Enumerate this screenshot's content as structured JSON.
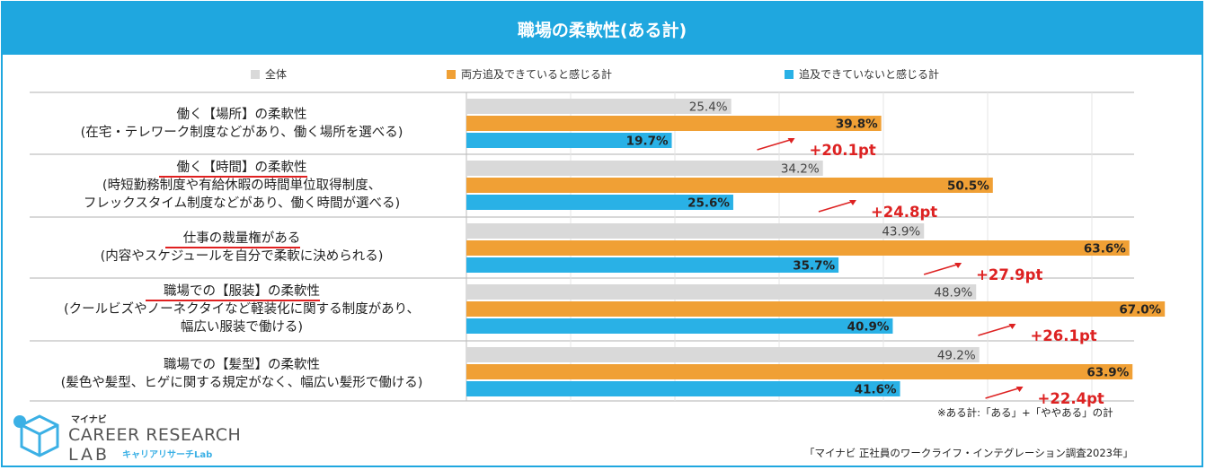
{
  "header": {
    "title": "職場の柔軟性(ある計)"
  },
  "legend": [
    {
      "label": "全体",
      "color": "#d9d9d9"
    },
    {
      "label": "両方追及できていると感じる計",
      "color": "#f0a035"
    },
    {
      "label": "追及できていないと感じる計",
      "color": "#29b1e6"
    }
  ],
  "rows": [
    {
      "line1": "働く【場所】の柔軟性",
      "line2": "(在宅・テレワーク制度などがあり、働く場所を選べる)",
      "line3": ""
    },
    {
      "line1": "働く【時間】の柔軟性",
      "line2": "(時短勤務制度や有給休暇の時間単位取得制度、",
      "line3": "フレックスタイム制度などがあり、働く時間が選べる)"
    },
    {
      "line1": "仕事の裁量権がある",
      "line2": "(内容やスケジュールを自分で柔軟に決められる)",
      "line3": ""
    },
    {
      "line1": "職場での【服装】の柔軟性",
      "line2": "(クールビズやノーネクタイなど軽装化に関する制度があり、",
      "line3": "幅広い服装で働ける)"
    },
    {
      "line1": "職場での【髪型】の柔軟性",
      "line2": "(髪色や髪型、ヒゲに関する規定がなく、幅広い髪形で働ける)",
      "line3": ""
    }
  ],
  "chart_data": {
    "type": "bar",
    "orientation": "horizontal",
    "title": "職場の柔軟性(ある計)",
    "categories": [
      "働く【場所】の柔軟性",
      "働く【時間】の柔軟性",
      "仕事の裁量権がある",
      "職場での【服装】の柔軟性",
      "職場での【髪型】の柔軟性"
    ],
    "series": [
      {
        "name": "全体",
        "values": [
          25.4,
          34.2,
          43.9,
          48.9,
          49.2
        ],
        "color": "#d9d9d9"
      },
      {
        "name": "両方追及できていると感じる計",
        "values": [
          39.8,
          50.5,
          63.6,
          67.0,
          63.9
        ],
        "color": "#f0a035"
      },
      {
        "name": "追及できていないと感じる計",
        "values": [
          19.7,
          25.6,
          35.7,
          40.9,
          41.6
        ],
        "color": "#29b1e6"
      }
    ],
    "value_labels": [
      [
        "25.4%",
        "39.8%",
        "19.7%"
      ],
      [
        "34.2%",
        "50.5%",
        "25.6%"
      ],
      [
        "43.9%",
        "63.6%",
        "35.7%"
      ],
      [
        "48.9%",
        "67.0%",
        "40.9%"
      ],
      [
        "49.2%",
        "63.9%",
        "41.6%"
      ]
    ],
    "differences": [
      "+20.1pt",
      "+24.8pt",
      "+27.9pt",
      "+26.1pt",
      "+22.4pt"
    ],
    "xlim": [
      0,
      70
    ],
    "grid": true
  },
  "notes": {
    "footnote": "※ある計:「ある」+「ややある」の計",
    "source": "「マイナビ 正社員のワークライフ・インテグレーション調査2023年」"
  },
  "logo": {
    "brand": "マイナビ",
    "line1": "CAREER RESEARCH",
    "line2": "LAB",
    "sub": "キャリアリサーチLab"
  }
}
